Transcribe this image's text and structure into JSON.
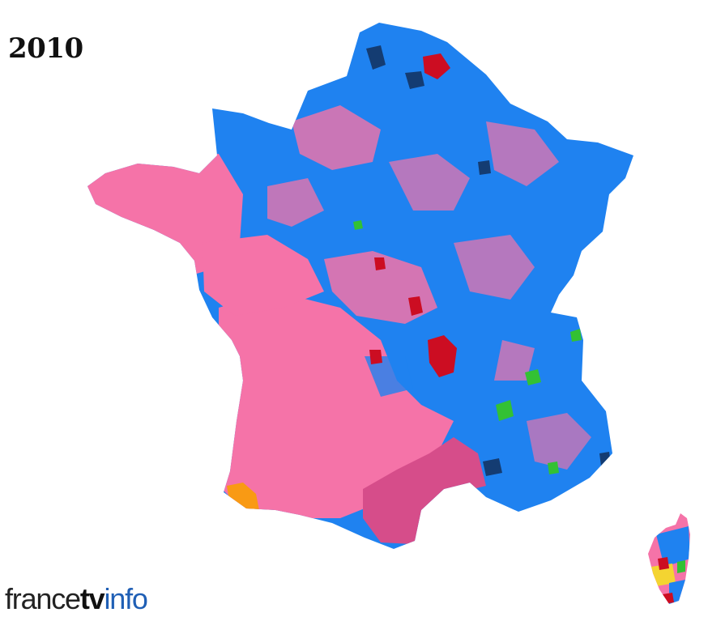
{
  "title": "2010",
  "brand": {
    "part1": "france",
    "part2": "tv",
    "part3": "info"
  },
  "colors": {
    "blue": "#1f82f0",
    "pink": "#f573a8",
    "dark_pink": "#d64d8a",
    "red": "#cc0d22",
    "navy": "#13305c",
    "green": "#33c133",
    "orange": "#f99a14",
    "yellow": "#f4d431",
    "logo_blue": "#1f5fb5"
  }
}
